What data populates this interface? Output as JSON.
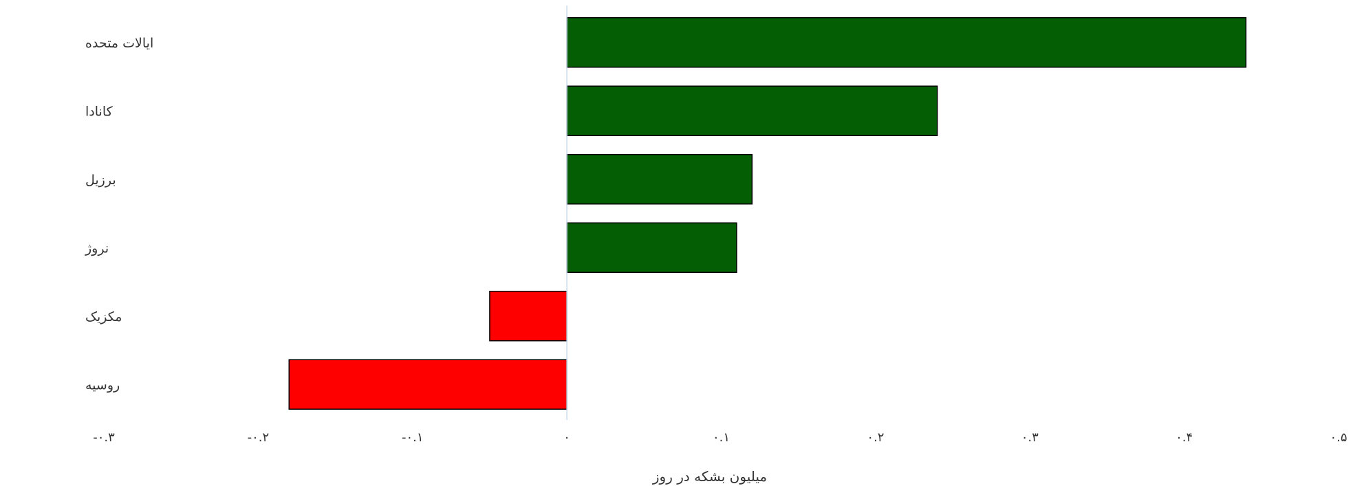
{
  "chart_data": {
    "type": "bar",
    "orientation": "horizontal",
    "categories": [
      "ایالات متحده",
      "کانادا",
      "برزیل",
      "نروژ",
      "مکزیک",
      "روسیه"
    ],
    "values": [
      0.44,
      0.24,
      0.12,
      0.11,
      -0.05,
      -0.18
    ],
    "positive_color": "#045f04",
    "negative_color": "#ff0000",
    "xlabel": "میلیون بشکه در روز",
    "xlim": [
      -0.3,
      0.5
    ],
    "xticks": [
      -0.3,
      -0.2,
      -0.1,
      0,
      0.1,
      0.2,
      0.3,
      0.4,
      0.5
    ],
    "xtick_labels": [
      "-۰.۳",
      "-۰.۲",
      "-۰.۱",
      "۰",
      "۰.۱",
      "۰.۲",
      "۰.۳",
      "۰.۴",
      "۰.۵"
    ],
    "grid": false,
    "legend": "none"
  }
}
